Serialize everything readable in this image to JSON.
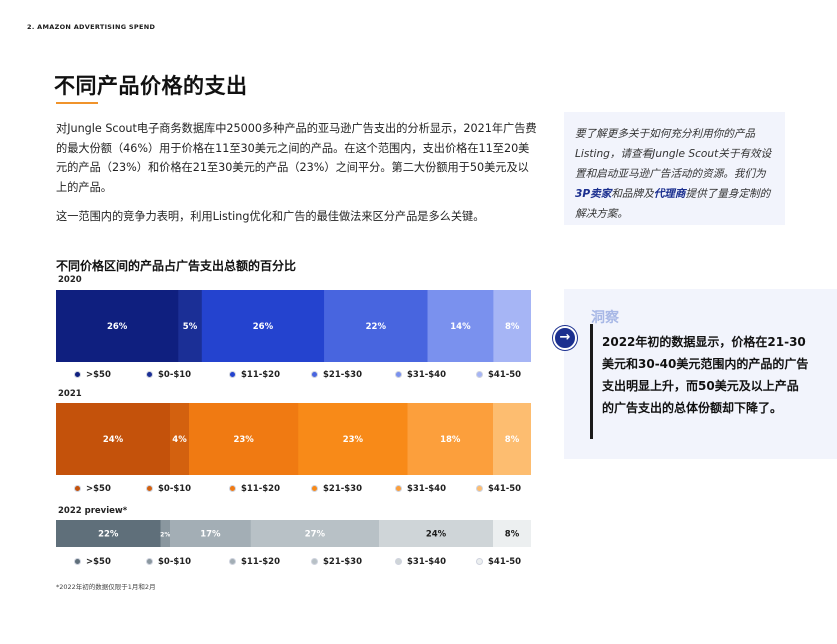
{
  "header": {
    "section_label": "2.  AMAZON ADVERTISING SPEND"
  },
  "page_title": "不同产品价格的支出",
  "intro": "对Jungle Scout电子商务数据库中25000多种产品的亚马逊广告支出的分析显示，2021年广告费的最大份额（46%）用于价格在11至30美元之间的产品。在这个范围内，支出价格在11至20美元的产品（23%）和价格在21至30美元的产品（23%）之间平分。第二大份额用于50美元及以上的产品。",
  "intro2": "这一范围内的竞争力表明，利用Listing优化和广告的最佳做法来区分产品是多么关键。",
  "sidebox": {
    "text_before": "要了解更多关于如何充分利用你的产品Listing，请查看Jungle Scout关于有效设置和启动亚马逊广告活动的资源。我们为",
    "link1": "3P卖家",
    "text_mid": "和品牌及",
    "link2": "代理商",
    "text_after": "提供了量身定制的解决方案。"
  },
  "insight": {
    "tag": "洞察",
    "text": "2022年初的数据显示，价格在21-30美元和30-40美元范围内的产品的广告支出明显上升，而50美元及以上产品的广告支出的总体份额却下降了。"
  },
  "footnote": "*2022年初的数据仅限于1月和2月",
  "chart_data": {
    "type": "bar",
    "stacked": "100%",
    "orientation": "horizontal",
    "title": "不同价格区间的产品占广告支出总额的百分比",
    "categories": [
      ">$50",
      "$0-$10",
      "$11-$20",
      "$21-$30",
      "$31-$40",
      "$41-50"
    ],
    "series": [
      {
        "name": "2020",
        "values": [
          26,
          5,
          26,
          22,
          14,
          8
        ],
        "labels": [
          "26%",
          "5%",
          "26%",
          "22%",
          "14%",
          "8%"
        ],
        "colors": [
          "#0f1f7f",
          "#1b2f96",
          "#2443cf",
          "#4865df",
          "#7a91ee",
          "#a6b5f5"
        ],
        "label_colors": [
          "#ffffff",
          "#ffffff",
          "#ffffff",
          "#ffffff",
          "#ffffff",
          "#ffffff"
        ]
      },
      {
        "name": "2021",
        "values": [
          24,
          4,
          23,
          23,
          18,
          8
        ],
        "labels": [
          "24%",
          "4%",
          "23%",
          "23%",
          "18%",
          "8%"
        ],
        "colors": [
          "#c4520b",
          "#d3610f",
          "#f07a12",
          "#f88a18",
          "#fc9f3c",
          "#fdbd70"
        ],
        "label_colors": [
          "#ffffff",
          "#ffffff",
          "#ffffff",
          "#ffffff",
          "#ffffff",
          "#ffffff"
        ]
      },
      {
        "name": "2022 preview*",
        "values": [
          22,
          2,
          17,
          27,
          24,
          8
        ],
        "labels": [
          "22%",
          "2%",
          "17%",
          "27%",
          "24%",
          "8%"
        ],
        "colors": [
          "#5f6f7a",
          "#8a979f",
          "#a3aeb5",
          "#b8c1c6",
          "#cfd5d8",
          "#eceff0"
        ],
        "label_colors": [
          "#ffffff",
          "#ffffff",
          "#ffffff",
          "#ffffff",
          "#1a1a1a",
          "#1a1a1a"
        ]
      }
    ]
  }
}
